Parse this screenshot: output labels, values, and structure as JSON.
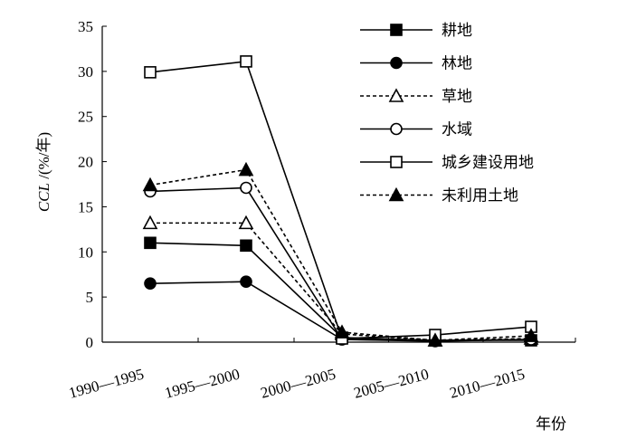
{
  "chart_data": {
    "type": "line",
    "categories": [
      "1990—1995",
      "1995—2000",
      "2000—2005",
      "2005—2010",
      "2010—2015"
    ],
    "ylabel_italic": "CCL",
    "ylabel_rest": " /(%/年)",
    "xlabel": "年份",
    "ylim": [
      0,
      35
    ],
    "yticks": [
      0,
      5,
      10,
      15,
      20,
      25,
      30,
      35
    ],
    "grid": false,
    "legend_position": "top-right",
    "series": [
      {
        "name": "耕地",
        "marker": "square-filled",
        "dash": "solid",
        "values": [
          11.0,
          10.7,
          0.5,
          0.2,
          0.2
        ]
      },
      {
        "name": "林地",
        "marker": "circle-filled",
        "dash": "solid",
        "values": [
          6.5,
          6.7,
          0.3,
          0.1,
          0.3
        ]
      },
      {
        "name": "草地",
        "marker": "triangle-open",
        "dash": "dashed",
        "values": [
          13.2,
          13.2,
          0.9,
          0.2,
          0.4
        ]
      },
      {
        "name": "水域",
        "marker": "circle-open",
        "dash": "solid",
        "values": [
          16.7,
          17.1,
          0.3,
          0.2,
          0.3
        ]
      },
      {
        "name": "城乡建设用地",
        "marker": "square-open",
        "dash": "solid",
        "values": [
          29.9,
          31.1,
          0.4,
          0.8,
          1.7
        ]
      },
      {
        "name": "未利用土地",
        "marker": "triangle-filled",
        "dash": "dashed",
        "values": [
          17.4,
          19.1,
          1.1,
          0.2,
          0.7
        ]
      }
    ]
  }
}
